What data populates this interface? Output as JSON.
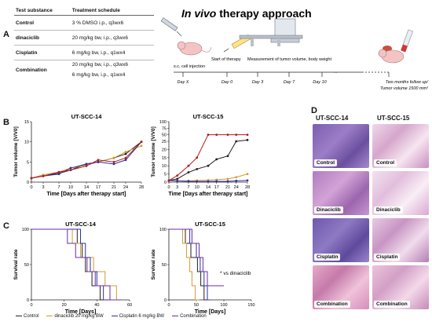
{
  "panels": {
    "A": "A",
    "B": "B",
    "C": "C",
    "D": "D"
  },
  "table": {
    "headers": [
      "Test substance",
      "Treatment schedule"
    ],
    "rows": [
      {
        "substance": "Control",
        "schedule": [
          "3 % DMSO i.p., q3wx6"
        ]
      },
      {
        "substance": "dinaciclib",
        "schedule": [
          "20 mg/kg bw, i.p., q3wx6"
        ]
      },
      {
        "substance": "Cisplatin",
        "schedule": [
          "6 mg/kg bw, i.p., q1wx4"
        ]
      },
      {
        "substance": "Combination",
        "schedule": [
          "20 mg/kg bw, i.p., q3wx6",
          "6 mg/kg bw, i.p., q1wx4"
        ]
      }
    ]
  },
  "timeline": {
    "title_italic": "In vivo",
    "title_rest": " therapy approach",
    "steps": [
      "s.c. cell injection",
      "Start of therapy",
      "Measurement of tumor volume, body weight"
    ],
    "days": [
      "Day X",
      "Day 0",
      "Day 3",
      "Day 7",
      "Day 10",
      "···"
    ],
    "end_label_1": "Two months follow up/",
    "end_label_2": "Tumor volume 1500  mm³"
  },
  "colors": {
    "control": "#222222",
    "dinaciclib": "#d59a2c",
    "cisplatin": "#2e2ea6",
    "combination": "#b01e1e",
    "purple": "#6a2c9e"
  },
  "chart_data": [
    {
      "type": "line",
      "title": "UT-SCC-14",
      "xlabel": "Time [Days after therapy start]",
      "ylabel": "Tumor volume [V/V0]",
      "x": [
        0,
        3,
        7,
        10,
        14,
        17,
        21,
        24,
        28
      ],
      "ylim": [
        0,
        15
      ],
      "yticks": [
        0,
        5,
        10,
        15
      ],
      "series": [
        {
          "name": "Control",
          "values": [
            1,
            1.5,
            2.2,
            3,
            4.5,
            5,
            6,
            7,
            10
          ]
        },
        {
          "name": "dinaciclib 20 mg/kg BW",
          "values": [
            1,
            1.8,
            2.5,
            3.5,
            4.2,
            5,
            6,
            7.5,
            9
          ]
        },
        {
          "name": "Cisplatin 6 mg/kg BW",
          "values": [
            1,
            1.5,
            2,
            3.5,
            4.5,
            5,
            4.5,
            5.5,
            10
          ]
        },
        {
          "name": "Combination",
          "values": [
            1,
            1.5,
            2.5,
            3,
            4,
            5.5,
            5,
            6,
            10
          ]
        }
      ]
    },
    {
      "type": "line",
      "title": "UT-SCC-15",
      "xlabel": "Time [Days after therapy start]",
      "ylabel": "Tumor volume [V/V0]",
      "x": [
        0,
        3,
        7,
        10,
        14,
        17,
        21,
        24,
        28
      ],
      "yticks": [
        0,
        5,
        10,
        15,
        20,
        25,
        50,
        75,
        100
      ],
      "series": [
        {
          "name": "Control",
          "values": [
            1,
            2,
            6,
            8,
            10,
            14,
            16,
            25,
            30
          ]
        },
        {
          "name": "dinaciclib 20 mg/kg BW",
          "values": [
            1,
            0.8,
            0.8,
            1,
            1.2,
            1.5,
            2,
            3,
            5
          ]
        },
        {
          "name": "Cisplatin 6 mg/kg BW",
          "values": [
            1,
            0.7,
            0.5,
            0.4,
            0.4,
            0.5,
            0.5,
            0.8,
            1
          ]
        },
        {
          "name": "Combination",
          "values": [
            1,
            4,
            10,
            15,
            50,
            50,
            50,
            50,
            50
          ]
        }
      ]
    },
    {
      "type": "line",
      "title": "UT-SCC-14",
      "xlabel": "Time [Days]",
      "ylabel": "Survival rate",
      "xticks": [
        0,
        20,
        40,
        60
      ],
      "yticks": [
        0,
        50,
        100
      ],
      "series": [
        {
          "name": "Control",
          "points": [
            [
              0,
              100
            ],
            [
              28,
              100
            ],
            [
              28,
              80
            ],
            [
              31,
              80
            ],
            [
              31,
              60
            ],
            [
              33,
              60
            ],
            [
              33,
              40
            ],
            [
              37,
              40
            ],
            [
              37,
              20
            ],
            [
              42,
              20
            ],
            [
              42,
              0
            ],
            [
              55,
              0
            ]
          ]
        },
        {
          "name": "dinaciclib 20 mg/kg BW",
          "points": [
            [
              0,
              100
            ],
            [
              25,
              100
            ],
            [
              25,
              80
            ],
            [
              30,
              80
            ],
            [
              30,
              60
            ],
            [
              38,
              60
            ],
            [
              38,
              40
            ],
            [
              45,
              40
            ],
            [
              45,
              20
            ],
            [
              52,
              20
            ],
            [
              52,
              0
            ],
            [
              55,
              0
            ]
          ]
        },
        {
          "name": "Cisplatin 6 mg/kg BW",
          "points": [
            [
              0,
              100
            ],
            [
              30,
              100
            ],
            [
              30,
              80
            ],
            [
              33,
              80
            ],
            [
              33,
              60
            ],
            [
              36,
              60
            ],
            [
              36,
              40
            ],
            [
              40,
              40
            ],
            [
              40,
              20
            ],
            [
              44,
              20
            ],
            [
              44,
              0
            ],
            [
              55,
              0
            ]
          ]
        },
        {
          "name": "Combination",
          "points": [
            [
              0,
              100
            ],
            [
              22,
              100
            ],
            [
              22,
              80
            ],
            [
              27,
              80
            ],
            [
              27,
              60
            ],
            [
              34,
              60
            ],
            [
              34,
              40
            ],
            [
              39,
              40
            ],
            [
              39,
              20
            ],
            [
              48,
              20
            ],
            [
              48,
              0
            ],
            [
              55,
              0
            ]
          ]
        }
      ]
    },
    {
      "type": "line",
      "title": "UT-SCC-15",
      "xlabel": "Time [Days]",
      "ylabel": "Survival rate",
      "xticks": [
        0,
        50,
        100,
        150
      ],
      "yticks": [
        0,
        50,
        100
      ],
      "annotation": "* vs dinaciclib",
      "series": [
        {
          "name": "Control",
          "points": [
            [
              0,
              100
            ],
            [
              30,
              100
            ],
            [
              30,
              80
            ],
            [
              40,
              80
            ],
            [
              40,
              60
            ],
            [
              52,
              60
            ],
            [
              52,
              40
            ],
            [
              58,
              40
            ],
            [
              58,
              20
            ],
            [
              64,
              20
            ],
            [
              64,
              0
            ],
            [
              70,
              0
            ]
          ]
        },
        {
          "name": "dinaciclib 20 mg/kg BW",
          "points": [
            [
              0,
              100
            ],
            [
              25,
              100
            ],
            [
              25,
              80
            ],
            [
              32,
              80
            ],
            [
              32,
              60
            ],
            [
              38,
              60
            ],
            [
              38,
              40
            ],
            [
              42,
              40
            ],
            [
              42,
              20
            ],
            [
              48,
              20
            ],
            [
              48,
              0
            ],
            [
              55,
              0
            ]
          ]
        },
        {
          "name": "Cisplatin 6 mg/kg BW",
          "points": [
            [
              0,
              100
            ],
            [
              38,
              100
            ],
            [
              38,
              80
            ],
            [
              50,
              80
            ],
            [
              50,
              60
            ],
            [
              57,
              60
            ],
            [
              57,
              40
            ],
            [
              64,
              40
            ],
            [
              64,
              20
            ],
            [
              70,
              20
            ],
            [
              70,
              0
            ],
            [
              75,
              0
            ]
          ]
        },
        {
          "name": "Combination",
          "points": [
            [
              0,
              100
            ],
            [
              42,
              100
            ],
            [
              42,
              80
            ],
            [
              55,
              80
            ],
            [
              55,
              60
            ],
            [
              62,
              60
            ],
            [
              62,
              40
            ],
            [
              70,
              40
            ],
            [
              70,
              20
            ],
            [
              100,
              20
            ]
          ]
        }
      ]
    }
  ],
  "legend": [
    "Control",
    "dinaciclib 20 mg/kg BW",
    "Cisplatin 6 mg/kg BW",
    "Combination"
  ],
  "histology": {
    "col_titles": [
      "UT-SCC-14",
      "UT-SCC-15"
    ],
    "rows": [
      "Control",
      "Dinaciclib",
      "Cisplatin",
      "Combination"
    ]
  }
}
